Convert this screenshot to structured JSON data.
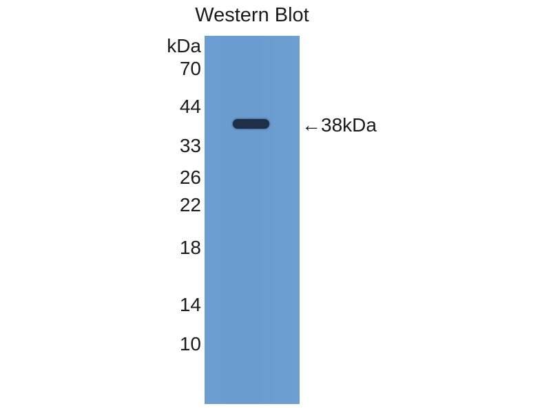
{
  "title": "Western Blot",
  "unit_label": "kDa",
  "markers": [
    "70",
    "44",
    "33",
    "26",
    "22",
    "18",
    "14",
    "10"
  ],
  "band_annotation": "←38kDa",
  "colors": {
    "membrane": "#6a9ccf",
    "band": "#1e2f48"
  }
}
